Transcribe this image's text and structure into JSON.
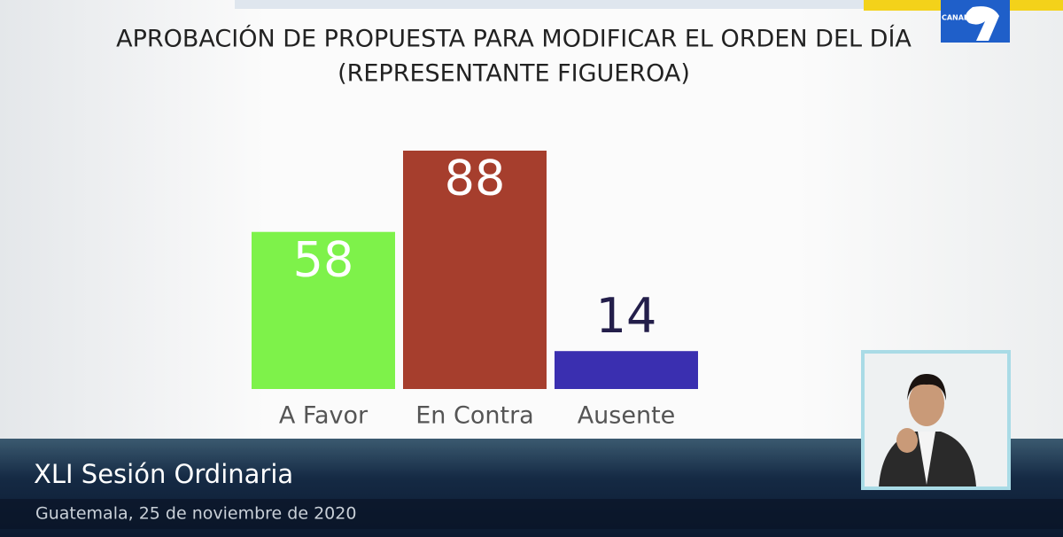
{
  "chart_data": {
    "type": "bar",
    "title": "APROBACIÓN DE PROPUESTA PARA MODIFICAR EL ORDEN DEL DÍA",
    "subtitle": "(REPRESENTANTE FIGUEROA)",
    "categories": [
      "A Favor",
      "En Contra",
      "Ausente"
    ],
    "values": [
      58,
      88,
      14
    ],
    "colors": [
      "#7ef24a",
      "#a63e2d",
      "#3a2fb0"
    ]
  },
  "banner": {
    "title": "XLI Sesión Ordinaria",
    "subtitle": "Guatemala, 25 de noviembre de 2020"
  },
  "logo": {
    "text": "CANAL"
  }
}
